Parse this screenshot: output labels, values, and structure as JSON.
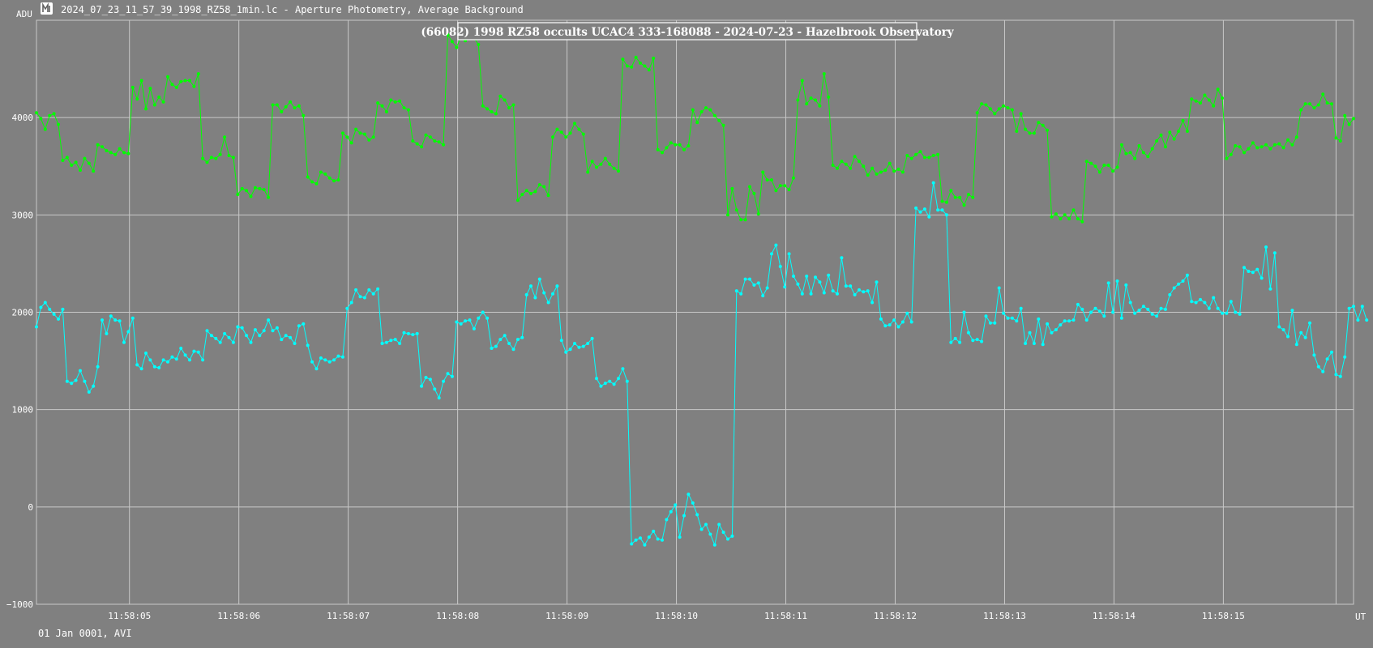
{
  "window": {
    "title": "2024_07_23_11_57_39_1998_RZ58_1min.lc - Aperture Photometry, Average Background",
    "icon": "lightcurve-app-icon"
  },
  "footer": {
    "date_label": "01 Jan 0001, AVI"
  },
  "colors": {
    "background": "#808080",
    "grid": "#c8c8c8",
    "series_1": "#00ff00",
    "series_2": "#00ffff",
    "text": "#ffffff"
  },
  "chart_data": {
    "type": "line",
    "title": "(66082) 1998 RZ58 occults UCAC4 333-168088 - 2024-07-23 - Hazelbrook Observatory",
    "ylabel": "ADU",
    "xlabel": "UT",
    "ylim": [
      -1000,
      5000
    ],
    "xlim": [
      "11:58:04.15",
      "11:58:16.12"
    ],
    "y_ticks": [
      -1000,
      0,
      1000,
      2000,
      3000,
      4000
    ],
    "x_ticks": [
      "11:58:05",
      "11:58:06",
      "11:58:07",
      "11:58:08",
      "11:58:09",
      "11:58:10",
      "11:58:11",
      "11:58:12",
      "11:58:13",
      "11:58:14",
      "11:58:15"
    ],
    "grid": true,
    "x_start_seconds": 4.15,
    "x_step_seconds": 0.04,
    "series": [
      {
        "color": "#00ff00",
        "values": [
          4050,
          3990,
          3880,
          4020,
          4040,
          3930,
          3560,
          3590,
          3510,
          3540,
          3460,
          3580,
          3530,
          3450,
          3720,
          3700,
          3660,
          3640,
          3620,
          3680,
          3640,
          3630,
          4310,
          4190,
          4380,
          4090,
          4300,
          4130,
          4210,
          4160,
          4420,
          4340,
          4310,
          4370,
          4380,
          4380,
          4320,
          4450,
          3580,
          3540,
          3590,
          3580,
          3620,
          3800,
          3610,
          3590,
          3210,
          3270,
          3250,
          3190,
          3280,
          3270,
          3260,
          3180,
          4130,
          4130,
          4060,
          4110,
          4160,
          4100,
          4120,
          4020,
          3390,
          3340,
          3320,
          3440,
          3420,
          3380,
          3350,
          3360,
          3840,
          3800,
          3740,
          3880,
          3840,
          3830,
          3770,
          3800,
          4150,
          4120,
          4060,
          4180,
          4160,
          4170,
          4100,
          4080,
          3760,
          3730,
          3700,
          3820,
          3800,
          3760,
          3750,
          3720,
          4850,
          4780,
          4720,
          4830,
          4790,
          4850,
          4820,
          4750,
          4120,
          4090,
          4060,
          4040,
          4220,
          4180,
          4100,
          4130,
          3150,
          3210,
          3250,
          3220,
          3240,
          3310,
          3290,
          3200,
          3800,
          3880,
          3850,
          3800,
          3840,
          3940,
          3880,
          3830,
          3440,
          3550,
          3490,
          3520,
          3580,
          3520,
          3480,
          3450,
          4600,
          4530,
          4520,
          4620,
          4560,
          4530,
          4490,
          4610,
          3670,
          3640,
          3690,
          3740,
          3720,
          3720,
          3670,
          3710,
          4080,
          3950,
          4060,
          4100,
          4080,
          4020,
          3970,
          3920,
          3000,
          3270,
          3050,
          2950,
          2950,
          3290,
          3220,
          3010,
          3440,
          3360,
          3360,
          3250,
          3300,
          3300,
          3260,
          3380,
          4180,
          4380,
          4140,
          4200,
          4180,
          4120,
          4450,
          4210,
          3510,
          3480,
          3550,
          3520,
          3480,
          3600,
          3550,
          3500,
          3410,
          3480,
          3420,
          3440,
          3460,
          3530,
          3450,
          3470,
          3440,
          3610,
          3580,
          3620,
          3650,
          3590,
          3590,
          3610,
          3620,
          3140,
          3130,
          3250,
          3180,
          3180,
          3100,
          3210,
          3180,
          4050,
          4140,
          4130,
          4090,
          4040,
          4090,
          4120,
          4100,
          4080,
          3860,
          4040,
          3880,
          3840,
          3840,
          3950,
          3920,
          3870,
          2980,
          3010,
          2960,
          3000,
          2960,
          3050,
          2960,
          2930,
          3550,
          3530,
          3500,
          3440,
          3510,
          3510,
          3450,
          3490,
          3720,
          3630,
          3640,
          3580,
          3710,
          3640,
          3600,
          3680,
          3760,
          3820,
          3700,
          3850,
          3780,
          3860,
          3970,
          3860,
          4190,
          4170,
          4150,
          4230,
          4180,
          4120,
          4290,
          4200,
          3580,
          3620,
          3710,
          3700,
          3640,
          3680,
          3740,
          3690,
          3700,
          3720,
          3680,
          3720,
          3730,
          3690,
          3770,
          3720,
          3800,
          4080,
          4140,
          4140,
          4100,
          4130,
          4240,
          4150,
          4140,
          3790,
          3760,
          4020,
          3930,
          3990
        ]
      },
      {
        "color": "#00ffff",
        "values": [
          1850,
          2050,
          2100,
          2030,
          1980,
          1930,
          2030,
          1290,
          1270,
          1300,
          1400,
          1290,
          1180,
          1240,
          1440,
          1920,
          1780,
          1960,
          1920,
          1910,
          1690,
          1800,
          1940,
          1460,
          1420,
          1580,
          1510,
          1440,
          1430,
          1510,
          1490,
          1540,
          1520,
          1630,
          1560,
          1510,
          1600,
          1590,
          1510,
          1810,
          1760,
          1730,
          1690,
          1780,
          1740,
          1690,
          1850,
          1840,
          1760,
          1690,
          1820,
          1760,
          1810,
          1920,
          1810,
          1840,
          1720,
          1760,
          1740,
          1680,
          1860,
          1880,
          1660,
          1490,
          1420,
          1530,
          1510,
          1490,
          1510,
          1550,
          1540,
          2040,
          2100,
          2230,
          2160,
          2150,
          2230,
          2190,
          2240,
          1680,
          1690,
          1710,
          1720,
          1680,
          1790,
          1780,
          1770,
          1780,
          1240,
          1330,
          1310,
          1210,
          1120,
          1290,
          1370,
          1340,
          1900,
          1880,
          1910,
          1920,
          1830,
          1940,
          2000,
          1940,
          1630,
          1650,
          1720,
          1760,
          1680,
          1620,
          1720,
          1740,
          2180,
          2270,
          2150,
          2340,
          2200,
          2100,
          2190,
          2270,
          1710,
          1590,
          1620,
          1680,
          1640,
          1650,
          1680,
          1730,
          1320,
          1240,
          1270,
          1290,
          1260,
          1320,
          1420,
          1290,
          -380,
          -340,
          -320,
          -390,
          -310,
          -250,
          -330,
          -340,
          -130,
          -50,
          20,
          -310,
          -90,
          130,
          40,
          -80,
          -230,
          -180,
          -280,
          -390,
          -180,
          -260,
          -330,
          -300,
          2220,
          2190,
          2340,
          2340,
          2280,
          2300,
          2170,
          2250,
          2600,
          2690,
          2470,
          2260,
          2600,
          2370,
          2290,
          2190,
          2370,
          2190,
          2360,
          2310,
          2200,
          2380,
          2220,
          2190,
          2560,
          2270,
          2270,
          2180,
          2230,
          2210,
          2220,
          2100,
          2310,
          1930,
          1860,
          1870,
          1920,
          1850,
          1900,
          1990,
          1900,
          3070,
          3030,
          3060,
          2980,
          3330,
          3050,
          3050,
          3000,
          1690,
          1730,
          1690,
          2000,
          1790,
          1710,
          1720,
          1700,
          1960,
          1890,
          1890,
          2250,
          1990,
          1940,
          1940,
          1910,
          2040,
          1680,
          1790,
          1680,
          1930,
          1670,
          1880,
          1790,
          1820,
          1870,
          1910,
          1910,
          1920,
          2080,
          2030,
          1920,
          2000,
          2040,
          2010,
          1960,
          2300,
          2000,
          2320,
          1940,
          2280,
          2100,
          1990,
          2020,
          2060,
          2030,
          1980,
          1960,
          2040,
          2030,
          2180,
          2250,
          2290,
          2320,
          2380,
          2110,
          2100,
          2130,
          2100,
          2040,
          2150,
          2040,
          1990,
          1990,
          2110,
          2000,
          1980,
          2460,
          2420,
          2410,
          2440,
          2350,
          2670,
          2240,
          2610,
          1850,
          1820,
          1750,
          2020,
          1670,
          1790,
          1740,
          1890,
          1560,
          1440,
          1390,
          1520,
          1590,
          1360,
          1340,
          1540,
          2040,
          2060,
          1920,
          2060,
          1920
        ]
      }
    ]
  }
}
